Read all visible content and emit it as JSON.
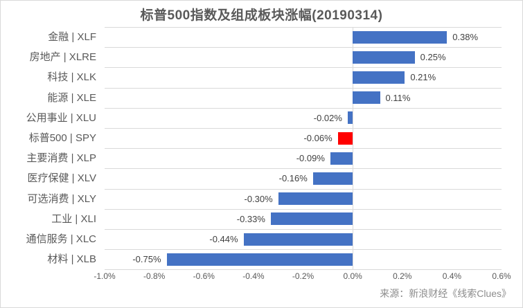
{
  "title": "标普500指数及组成板块涨幅(20190314)",
  "source": "来源：新浪财经《线索Clues》",
  "colors": {
    "bar": "#4472C4",
    "highlight_bar": "#FF0000",
    "gridline": "#D9D9D9",
    "axis_text": "#595959",
    "category_text": "#595959",
    "value_text": "#404040",
    "title_text": "#595959",
    "source_text": "#8C8C8C",
    "background": "#FFFFFF"
  },
  "chart_data": {
    "type": "bar",
    "orientation": "horizontal",
    "title": "标普500指数及组成板块涨幅(20190314)",
    "categories": [
      "金融 | XLF",
      "房地产 | XLRE",
      "科技 | XLK",
      "能源 | XLE",
      "公用事业 | XLU",
      "标普500 | SPY",
      "主要消费 | XLP",
      "医疗保健 | XLV",
      "可选消费 | XLY",
      "工业 | XLI",
      "通信服务 | XLC",
      "材料 | XLB"
    ],
    "tickers": [
      "xlf",
      "xlre",
      "xlk",
      "xle",
      "xlu",
      "spy",
      "xlp",
      "xlv",
      "xly",
      "xli",
      "xlc",
      "xlb"
    ],
    "values": [
      0.38,
      0.25,
      0.21,
      0.11,
      -0.02,
      -0.06,
      -0.09,
      -0.16,
      -0.3,
      -0.33,
      -0.44,
      -0.75
    ],
    "value_labels": [
      "0.38%",
      "0.25%",
      "0.21%",
      "0.11%",
      "-0.02%",
      "-0.06%",
      "-0.09%",
      "-0.16%",
      "-0.30%",
      "-0.33%",
      "-0.44%",
      "-0.75%"
    ],
    "highlight_index": 5,
    "highlight_category": "标普500 | SPY",
    "x_ticks": [
      "-1.0%",
      "-0.8%",
      "-0.6%",
      "-0.4%",
      "-0.2%",
      "0.0%",
      "0.2%",
      "0.4%",
      "0.6%"
    ],
    "xlim": [
      -1.0,
      0.6
    ],
    "xlabel": "",
    "ylabel": "",
    "legend": "none",
    "grid": "category row separators and zero axis line",
    "source": "来源：新浪财经《线索Clues》"
  }
}
